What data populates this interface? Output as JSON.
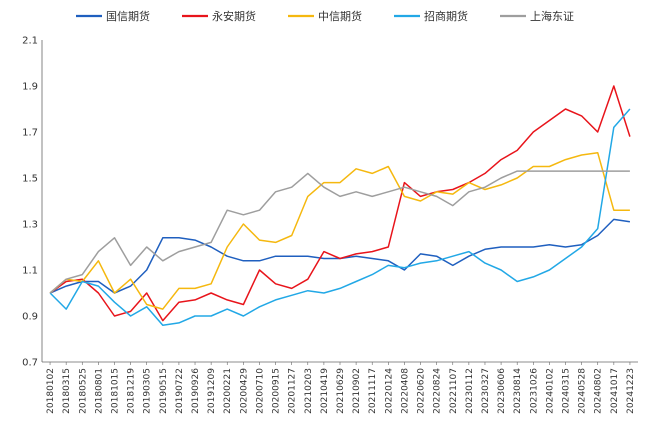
{
  "chart_data": {
    "type": "line",
    "legend_position": "top",
    "ylim": [
      0.7,
      2.1
    ],
    "yticks": [
      0.7,
      0.9,
      1.1,
      1.3,
      1.5,
      1.7,
      1.9,
      2.1
    ],
    "ytick_labels": [
      "0.7",
      "0.9",
      "1.1",
      "1.3",
      "1.5",
      "1.7",
      "1.9",
      "2.1"
    ],
    "grid": false,
    "x": [
      "20180102",
      "20180315",
      "20180525",
      "20180801",
      "20181015",
      "20181219",
      "20190305",
      "20190515",
      "20190722",
      "20190926",
      "20191209",
      "20200221",
      "20200429",
      "20200710",
      "20200915",
      "20201127",
      "20210203",
      "20210419",
      "20210629",
      "20210902",
      "20211117",
      "20220124",
      "20220408",
      "20220620",
      "20220824",
      "20221107",
      "20230112",
      "20230327",
      "20230606",
      "20230814",
      "20231026",
      "20240102",
      "20240315",
      "20240528",
      "20240802",
      "20241017",
      "20241223"
    ],
    "series": [
      {
        "name": "国信期货",
        "color": "#1f5fbf",
        "values": [
          1.0,
          1.03,
          1.05,
          1.05,
          1.0,
          1.03,
          1.1,
          1.24,
          1.24,
          1.23,
          1.2,
          1.16,
          1.14,
          1.14,
          1.16,
          1.16,
          1.16,
          1.15,
          1.15,
          1.16,
          1.15,
          1.14,
          1.1,
          1.17,
          1.16,
          1.12,
          1.16,
          1.19,
          1.2,
          1.2,
          1.2,
          1.21,
          1.2,
          1.21,
          1.25,
          1.32,
          1.31
        ]
      },
      {
        "name": "永安期货",
        "color": "#e8141b",
        "values": [
          1.0,
          1.05,
          1.06,
          1.0,
          0.9,
          0.92,
          1.0,
          0.88,
          0.96,
          0.97,
          1.0,
          0.97,
          0.95,
          1.1,
          1.04,
          1.02,
          1.06,
          1.18,
          1.15,
          1.17,
          1.18,
          1.2,
          1.48,
          1.42,
          1.44,
          1.45,
          1.48,
          1.52,
          1.58,
          1.62,
          1.7,
          1.75,
          1.8,
          1.77,
          1.7,
          1.9,
          1.68
        ]
      },
      {
        "name": "中信期货",
        "color": "#f5b80f",
        "values": [
          1.0,
          1.06,
          1.05,
          1.14,
          1.0,
          1.06,
          0.95,
          0.93,
          1.02,
          1.02,
          1.04,
          1.2,
          1.3,
          1.23,
          1.22,
          1.25,
          1.42,
          1.48,
          1.48,
          1.54,
          1.52,
          1.55,
          1.42,
          1.4,
          1.44,
          1.43,
          1.48,
          1.45,
          1.47,
          1.5,
          1.55,
          1.55,
          1.58,
          1.6,
          1.61,
          1.36,
          1.36
        ]
      },
      {
        "name": "招商期货",
        "color": "#22a8e6",
        "values": [
          1.0,
          0.93,
          1.05,
          1.03,
          0.96,
          0.9,
          0.94,
          0.86,
          0.87,
          0.9,
          0.9,
          0.93,
          0.9,
          0.94,
          0.97,
          0.99,
          1.01,
          1.0,
          1.02,
          1.05,
          1.08,
          1.12,
          1.11,
          1.13,
          1.14,
          1.16,
          1.18,
          1.13,
          1.1,
          1.05,
          1.07,
          1.1,
          1.15,
          1.2,
          1.28,
          1.72,
          1.8
        ]
      },
      {
        "name": "上海东证",
        "color": "#9e9e9e",
        "values": [
          1.0,
          1.06,
          1.08,
          1.18,
          1.24,
          1.12,
          1.2,
          1.14,
          1.18,
          1.2,
          1.22,
          1.36,
          1.34,
          1.36,
          1.44,
          1.46,
          1.52,
          1.46,
          1.42,
          1.44,
          1.42,
          1.44,
          1.46,
          1.44,
          1.42,
          1.38,
          1.44,
          1.46,
          1.5,
          1.53,
          1.53,
          1.53,
          1.53,
          1.53,
          1.53,
          1.53,
          1.53
        ]
      }
    ]
  }
}
